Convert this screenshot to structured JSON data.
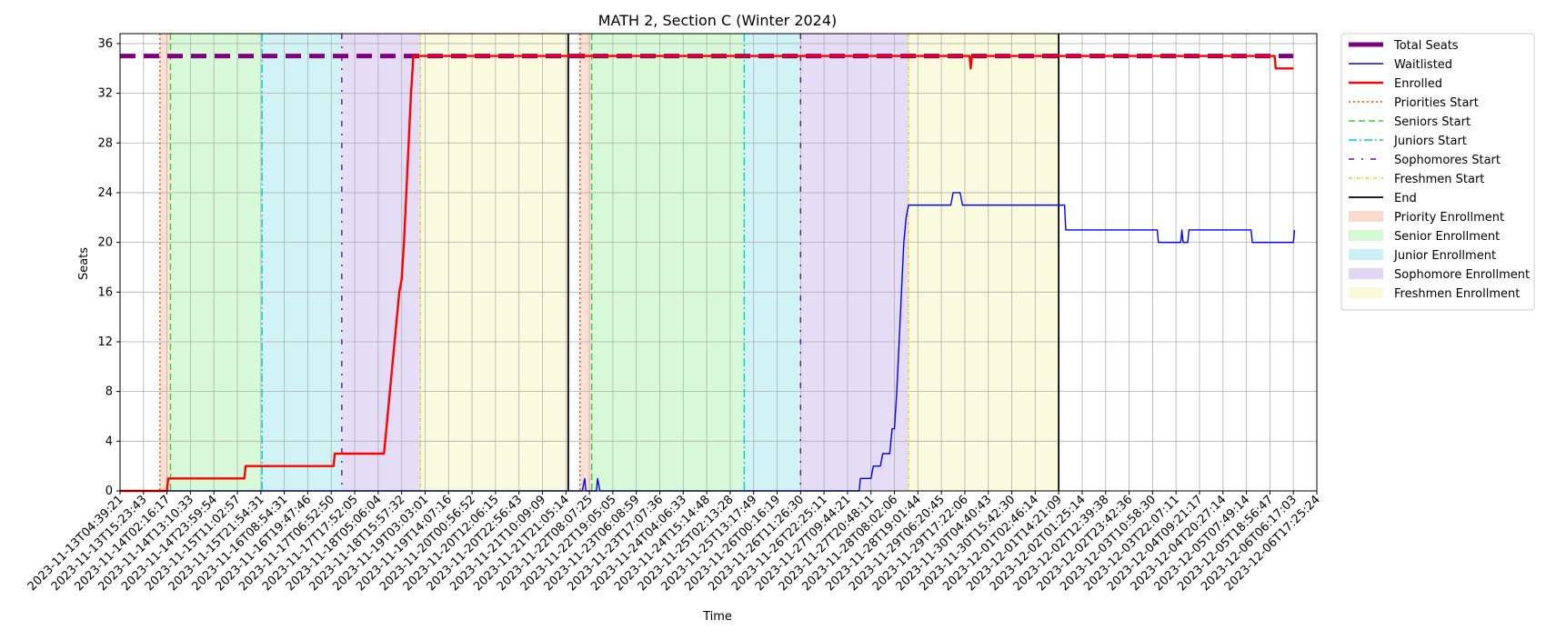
{
  "chart_data": {
    "type": "line",
    "title": "MATH 2, Section C (Winter 2024)",
    "xlabel": "Time",
    "ylabel": "Seats",
    "ylim": [
      0,
      36.8
    ],
    "yticks": [
      0,
      4,
      8,
      12,
      16,
      20,
      24,
      28,
      32,
      36
    ],
    "grid": true,
    "legend_placement": "outside-top-right",
    "x_tick_labels": [
      "2023-11-13T04:39:21",
      "2023-11-13T15:23:43",
      "2023-11-14T02:16:17",
      "2023-11-14T13:10:33",
      "2023-11-14T23:59:54",
      "2023-11-15T11:02:57",
      "2023-11-15T21:54:31",
      "2023-11-16T08:54:31",
      "2023-11-16T19:47:46",
      "2023-11-17T06:52:50",
      "2023-11-17T17:52:05",
      "2023-11-18T05:06:04",
      "2023-11-18T15:57:32",
      "2023-11-19T03:03:01",
      "2023-11-19T14:07:16",
      "2023-11-20T00:56:52",
      "2023-11-20T12:06:15",
      "2023-11-20T22:56:43",
      "2023-11-21T10:09:09",
      "2023-11-21T21:05:14",
      "2023-11-22T08:07:25",
      "2023-11-22T19:05:05",
      "2023-11-23T06:08:59",
      "2023-11-23T17:07:36",
      "2023-11-24T04:06:33",
      "2023-11-24T15:14:48",
      "2023-11-25T02:13:28",
      "2023-11-25T13:17:49",
      "2023-11-26T00:16:19",
      "2023-11-26T11:26:30",
      "2023-11-26T22:25:11",
      "2023-11-27T09:44:21",
      "2023-11-27T20:48:11",
      "2023-11-28T08:02:06",
      "2023-11-28T19:01:44",
      "2023-11-29T06:20:45",
      "2023-11-29T17:22:06",
      "2023-11-30T04:40:43",
      "2023-11-30T15:42:30",
      "2023-12-01T02:46:14",
      "2023-12-01T14:21:09",
      "2023-12-02T01:25:14",
      "2023-12-02T12:39:38",
      "2023-12-02T23:42:36",
      "2023-12-03T10:58:30",
      "2023-12-03T22:07:11",
      "2023-12-04T09:21:17",
      "2023-12-04T20:27:14",
      "2023-12-05T07:49:14",
      "2023-12-05T18:56:47",
      "2023-12-06T06:17:03",
      "2023-12-06T17:25:24"
    ],
    "series": [
      {
        "name": "Total Seats",
        "style": "dashed-thick",
        "color": "#800080",
        "points": [
          [
            0,
            35
          ],
          [
            50,
            35
          ]
        ]
      },
      {
        "name": "Waitlisted",
        "style": "solid-thin",
        "color": "#0000ff",
        "points": [
          [
            0,
            0
          ],
          [
            19.7,
            0
          ],
          [
            19.8,
            1
          ],
          [
            19.85,
            0
          ],
          [
            20.3,
            0
          ],
          [
            20.35,
            1
          ],
          [
            20.45,
            0
          ],
          [
            31.5,
            0
          ],
          [
            31.55,
            1
          ],
          [
            32.0,
            1
          ],
          [
            32.1,
            2
          ],
          [
            32.4,
            2
          ],
          [
            32.5,
            3
          ],
          [
            32.8,
            3
          ],
          [
            32.9,
            5
          ],
          [
            33.0,
            5
          ],
          [
            33.1,
            8
          ],
          [
            33.2,
            12
          ],
          [
            33.3,
            16
          ],
          [
            33.4,
            20
          ],
          [
            33.5,
            22
          ],
          [
            33.6,
            23
          ],
          [
            35.4,
            23
          ],
          [
            35.5,
            24
          ],
          [
            35.8,
            24
          ],
          [
            35.9,
            23
          ],
          [
            40.25,
            23
          ],
          [
            40.3,
            21
          ],
          [
            44.2,
            21
          ],
          [
            44.25,
            20
          ],
          [
            45.2,
            20
          ],
          [
            45.25,
            21
          ],
          [
            45.3,
            20
          ],
          [
            45.5,
            20
          ],
          [
            45.55,
            21
          ],
          [
            48.2,
            21
          ],
          [
            48.25,
            20
          ],
          [
            50,
            20
          ],
          [
            50.05,
            21
          ]
        ]
      },
      {
        "name": "Enrolled",
        "style": "solid-thick",
        "color": "#ff0000",
        "points": [
          [
            0,
            0
          ],
          [
            2.0,
            0
          ],
          [
            2.05,
            1
          ],
          [
            5.3,
            1
          ],
          [
            5.35,
            2
          ],
          [
            9.1,
            2
          ],
          [
            9.15,
            3
          ],
          [
            11.25,
            3
          ],
          [
            11.3,
            4
          ],
          [
            11.4,
            6
          ],
          [
            11.5,
            8
          ],
          [
            11.6,
            10
          ],
          [
            11.7,
            12
          ],
          [
            11.8,
            14
          ],
          [
            11.9,
            16
          ],
          [
            12.0,
            17
          ],
          [
            12.1,
            20
          ],
          [
            12.2,
            24
          ],
          [
            12.3,
            28
          ],
          [
            12.4,
            32
          ],
          [
            12.5,
            35
          ],
          [
            36.2,
            35
          ],
          [
            36.25,
            34
          ],
          [
            36.3,
            35
          ],
          [
            49.2,
            35
          ],
          [
            49.25,
            34
          ],
          [
            50,
            34
          ]
        ]
      }
    ],
    "event_lines": [
      {
        "name": "Priorities Start",
        "x": [
          1.7,
          19.6
        ],
        "color": "#ff4500",
        "style": "dotted"
      },
      {
        "name": "Seniors Start",
        "x": [
          2.15,
          20.1
        ],
        "color": "#32cd32",
        "style": "dashed"
      },
      {
        "name": "Juniors Start",
        "x": [
          6.05,
          26.6
        ],
        "color": "#00ced1",
        "style": "dashdot"
      },
      {
        "name": "Sophomores Start",
        "x": [
          9.45,
          29.0
        ],
        "color": "#6a0dad",
        "style": "loosely-dashdot"
      },
      {
        "name": "Freshmen Start",
        "x": [
          12.8,
          33.6
        ],
        "color": "#e5d422",
        "style": "dashdot-fine"
      },
      {
        "name": "End",
        "x": [
          19.1,
          40.0
        ],
        "color": "#000000",
        "style": "solid"
      }
    ],
    "spans": [
      {
        "name": "Priority Enrollment",
        "color": "#f4a582",
        "ranges": [
          [
            1.7,
            2.15
          ],
          [
            19.6,
            20.1
          ]
        ]
      },
      {
        "name": "Senior Enrollment",
        "color": "#90ee90",
        "ranges": [
          [
            2.15,
            6.05
          ],
          [
            20.1,
            26.6
          ]
        ]
      },
      {
        "name": "Junior Enrollment",
        "color": "#7fdde6",
        "ranges": [
          [
            6.05,
            9.45
          ],
          [
            26.6,
            29.0
          ]
        ]
      },
      {
        "name": "Sophomore Enrollment",
        "color": "#b59ce6",
        "ranges": [
          [
            9.45,
            12.8
          ],
          [
            29.0,
            33.6
          ]
        ]
      },
      {
        "name": "Freshmen Enrollment",
        "color": "#f0f0a0",
        "ranges": [
          [
            12.8,
            19.1
          ],
          [
            33.6,
            40.0
          ]
        ]
      }
    ]
  }
}
